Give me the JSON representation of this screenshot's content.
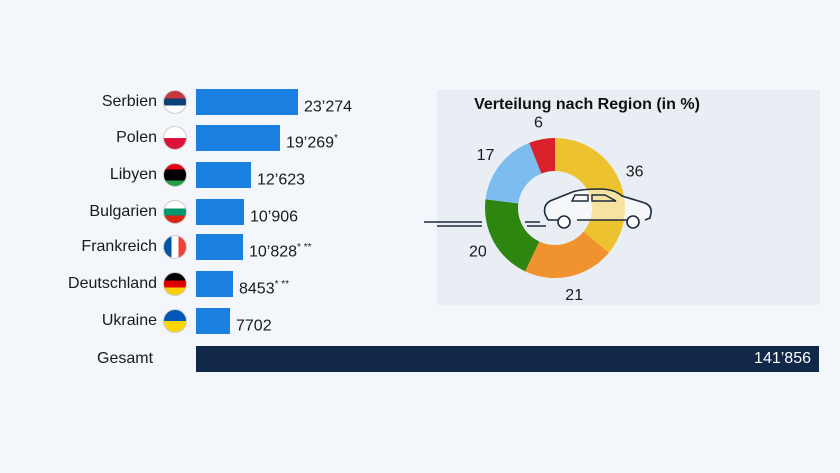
{
  "chart_data": [
    {
      "type": "bar",
      "orientation": "horizontal",
      "categories": [
        "Serbien",
        "Polen",
        "Libyen",
        "Bulgarien",
        "Frankreich",
        "Deutschland",
        "Ukraine"
      ],
      "values": [
        23274,
        19269,
        12623,
        10906,
        10828,
        8453,
        7702
      ],
      "value_labels": [
        "23’274",
        "19’269",
        "12’623",
        "10’906",
        "10’828",
        "8453",
        "7702"
      ],
      "footnote_marks": [
        "",
        "*",
        "",
        "",
        "* **",
        "* **",
        ""
      ],
      "flag_icons": [
        "serbia-flag-icon",
        "poland-flag-icon",
        "libya-flag-icon",
        "bulgaria-flag-icon",
        "france-flag-icon",
        "germany-flag-icon",
        "ukraine-flag-icon"
      ],
      "bar_color": "#1a7fe0",
      "total": {
        "label": "Gesamt",
        "value": 141856,
        "value_label": "141’856",
        "color": "#12284a"
      }
    },
    {
      "type": "pie",
      "donut": true,
      "title": "Verteilung nach Region (in %)",
      "values": [
        36,
        21,
        20,
        17,
        6
      ],
      "labels": [
        "36",
        "21",
        "20",
        "17",
        "6"
      ],
      "colors": [
        "#edc22f",
        "#f0922e",
        "#2e8510",
        "#7cbcee",
        "#d9202b"
      ],
      "center_icon": "car-icon"
    }
  ]
}
